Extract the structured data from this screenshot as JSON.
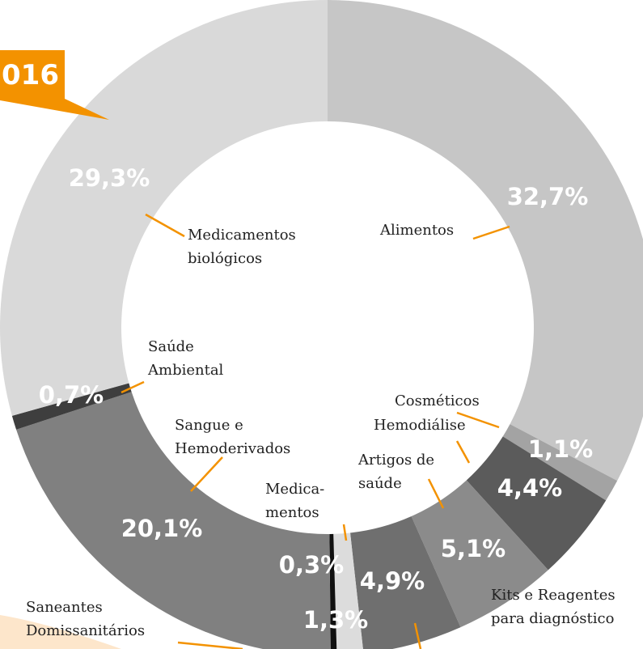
{
  "badge": "016",
  "chart_data": {
    "type": "donut",
    "categories": [
      [
        "Alimentos"
      ],
      [
        "Cosméticos"
      ],
      [
        "Hemodiálise"
      ],
      [
        "Artigos de",
        "saúde"
      ],
      [
        "Kits e Reagentes",
        "para diagnóstico"
      ],
      [
        "Medica-",
        "mentos"
      ],
      [
        "Saneantes",
        "Domissanitários"
      ],
      [
        "Sangue e",
        "Hemoderivados"
      ],
      [
        "Saúde",
        "Ambiental"
      ],
      [
        "Medicamentos",
        "biológicos"
      ]
    ],
    "values": [
      32.7,
      1.1,
      4.4,
      5.1,
      4.9,
      1.3,
      0.3,
      20.1,
      0.7,
      29.3
    ],
    "value_labels": [
      "32,7%",
      "1,1%",
      "4,4%",
      "5,1%",
      "4,9%",
      "1,3%",
      "0,3%",
      "20,1%",
      "0,7%",
      "29,3%"
    ],
    "colors": [
      "#c6c6c6",
      "#a3a3a3",
      "#5b5b5b",
      "#8b8b8b",
      "#6f6f6f",
      "#dcdcdc",
      "#111111",
      "#808080",
      "#3e3e3e",
      "#d9d9d9"
    ]
  }
}
